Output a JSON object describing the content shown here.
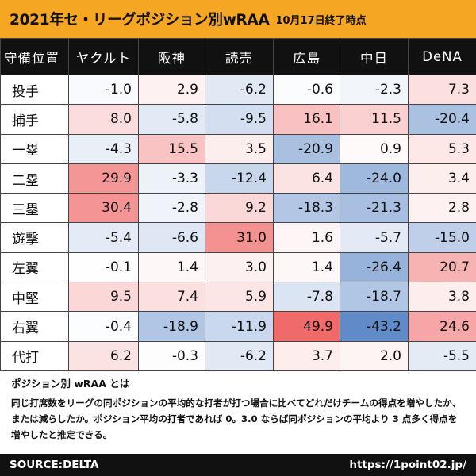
{
  "title": {
    "main": "2021年セ・リーグポジション別wRAA",
    "date": "10月17日終了時点"
  },
  "table": {
    "corner_label": "守備位置",
    "teams": [
      "ヤクルト",
      "阪神",
      "読売",
      "広島",
      "中日",
      "DeNA"
    ],
    "rows": [
      {
        "position": "投手",
        "values": [
          -1.0,
          2.9,
          -6.2,
          -0.6,
          -2.3,
          7.3
        ]
      },
      {
        "position": "捕手",
        "values": [
          8.0,
          -5.8,
          -9.5,
          16.1,
          11.5,
          -20.4
        ]
      },
      {
        "position": "一塁",
        "values": [
          -4.3,
          15.5,
          3.5,
          -20.9,
          0.9,
          5.3
        ]
      },
      {
        "position": "二塁",
        "values": [
          29.9,
          -3.3,
          -12.4,
          6.4,
          -24.0,
          3.4
        ]
      },
      {
        "position": "三塁",
        "values": [
          30.4,
          -2.8,
          9.2,
          -18.3,
          -21.3,
          2.8
        ]
      },
      {
        "position": "遊撃",
        "values": [
          -5.4,
          -6.6,
          31.0,
          1.6,
          -5.7,
          -15.0
        ]
      },
      {
        "position": "左翼",
        "values": [
          -0.1,
          1.4,
          3.0,
          1.4,
          -26.4,
          20.7
        ]
      },
      {
        "position": "中堅",
        "values": [
          9.5,
          7.4,
          5.9,
          -7.8,
          -18.7,
          3.8
        ]
      },
      {
        "position": "右翼",
        "values": [
          -0.4,
          -18.9,
          -11.9,
          49.9,
          -43.2,
          24.6
        ]
      },
      {
        "position": "代打",
        "values": [
          6.2,
          -0.3,
          -6.2,
          3.7,
          2.0,
          -5.5
        ]
      }
    ]
  },
  "note": {
    "title": "ポジション別 wRAA とは",
    "body": "同じ打席数をリーグの同ポジションの平均的な打者が打つ場合に比べてどれだけチームの得点を増やしたか、または減らしたか。ポジション平均の打者であれば 0。3.0 ならば同ポジションの平均より 3 点多く得点を増やしたと推定できる。"
  },
  "footer": {
    "source": "SOURCE:DELTA",
    "url": "https://1point02.jp/"
  },
  "colors": {
    "header_bg": "#F5A623",
    "positive": "#F06A6A",
    "negative": "#5B86C6"
  }
}
